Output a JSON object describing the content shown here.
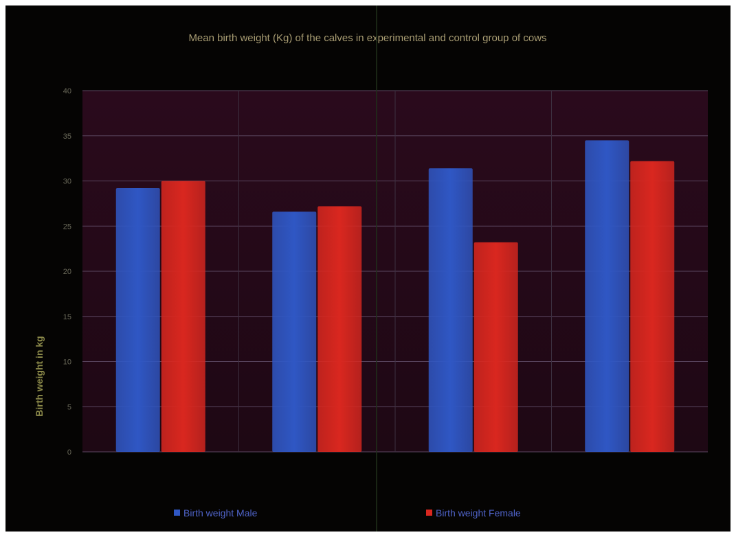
{
  "chart_data": {
    "type": "bar",
    "title": "Mean birth weight (Kg) of the calves in experimental and control group of cows",
    "xlabel": "",
    "ylabel": "Birth weight in kg",
    "categories": [
      "",
      "",
      "",
      ""
    ],
    "series": [
      {
        "name": "Birth weight Male",
        "values": [
          29.2,
          26.6,
          31.4,
          34.5
        ]
      },
      {
        "name": "Birth weight Female",
        "values": [
          30.0,
          27.2,
          23.2,
          32.2
        ]
      }
    ],
    "ylim": [
      0,
      40
    ],
    "yticks": [
      0,
      5,
      10,
      15,
      20,
      25,
      30,
      35,
      40
    ],
    "grid": true,
    "legend_position": "bottom",
    "colors": {
      "series": [
        "#2f57c4",
        "#d9271f"
      ],
      "plot_background": "#1e0814",
      "chart_background": "#050403",
      "gridline": "#5a4660"
    }
  }
}
